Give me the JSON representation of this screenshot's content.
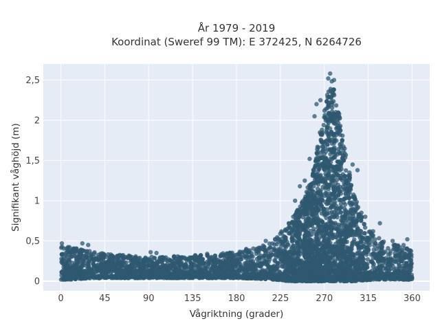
{
  "chart_data": {
    "type": "scatter",
    "title_line1": "År 1979 - 2019",
    "title_line2": "Koordinat (Sweref 99 TM): E 372425, N 6264726",
    "xlabel": "Vågriktning (grader)",
    "ylabel": "Signifikant våghöjd (m)",
    "xlim": [
      -18,
      378
    ],
    "ylim": [
      -0.12,
      2.7
    ],
    "x_ticks": [
      0,
      45,
      90,
      135,
      180,
      225,
      270,
      315,
      360
    ],
    "y_ticks": [
      0,
      0.5,
      1,
      1.5,
      2,
      2.5
    ],
    "y_tick_labels": [
      "0",
      "0,5",
      "1",
      "1,5",
      "2",
      "2,5"
    ],
    "grid": true,
    "color": "#2f5870",
    "envelope": {
      "x": [
        0,
        10,
        20,
        45,
        90,
        135,
        180,
        200,
        220,
        235,
        250,
        260,
        266,
        272,
        278,
        284,
        290,
        300,
        310,
        320,
        330,
        345,
        360
      ],
      "y_upper": [
        0.45,
        0.42,
        0.4,
        0.34,
        0.3,
        0.32,
        0.36,
        0.42,
        0.55,
        0.75,
        1.05,
        1.45,
        1.9,
        2.3,
        2.5,
        2.2,
        1.7,
        1.1,
        0.75,
        0.6,
        0.5,
        0.45,
        0.45
      ],
      "y_lower": [
        0.02,
        0.02,
        0.03,
        0.04,
        0.04,
        0.04,
        0.04,
        0.03,
        0.02,
        0.0,
        0.0,
        0.0,
        0.0,
        0.0,
        0.0,
        0.0,
        0.0,
        0.0,
        0.01,
        0.02,
        0.02,
        0.02,
        0.02
      ]
    },
    "notable_points": [
      {
        "x": 276,
        "y": 2.58
      },
      {
        "x": 274,
        "y": 2.52
      },
      {
        "x": 280,
        "y": 2.5
      },
      {
        "x": 266,
        "y": 2.25
      },
      {
        "x": 262,
        "y": 2.2
      },
      {
        "x": 260,
        "y": 2.05
      },
      {
        "x": 255,
        "y": 1.52
      },
      {
        "x": 299,
        "y": 1.45
      },
      {
        "x": 304,
        "y": 1.38
      },
      {
        "x": 245,
        "y": 1.18
      },
      {
        "x": 290,
        "y": 1.5
      },
      {
        "x": 286,
        "y": 1.7
      },
      {
        "x": 312,
        "y": 0.8
      },
      {
        "x": 327,
        "y": 0.72
      },
      {
        "x": 355,
        "y": 0.52
      },
      {
        "x": 1,
        "y": 0.47
      },
      {
        "x": 22,
        "y": 0.47
      },
      {
        "x": 28,
        "y": 0.45
      },
      {
        "x": 92,
        "y": 0.36
      },
      {
        "x": 98,
        "y": 0.35
      },
      {
        "x": 150,
        "y": 0.34
      },
      {
        "x": 190,
        "y": 0.4
      },
      {
        "x": 210,
        "y": 0.5
      },
      {
        "x": 230,
        "y": 0.64
      },
      {
        "x": 240,
        "y": 1.0
      },
      {
        "x": 250,
        "y": 1.25
      },
      {
        "x": 295,
        "y": 1.05
      },
      {
        "x": 308,
        "y": 0.85
      },
      {
        "x": 320,
        "y": 0.62
      },
      {
        "x": 340,
        "y": 0.5
      }
    ]
  }
}
